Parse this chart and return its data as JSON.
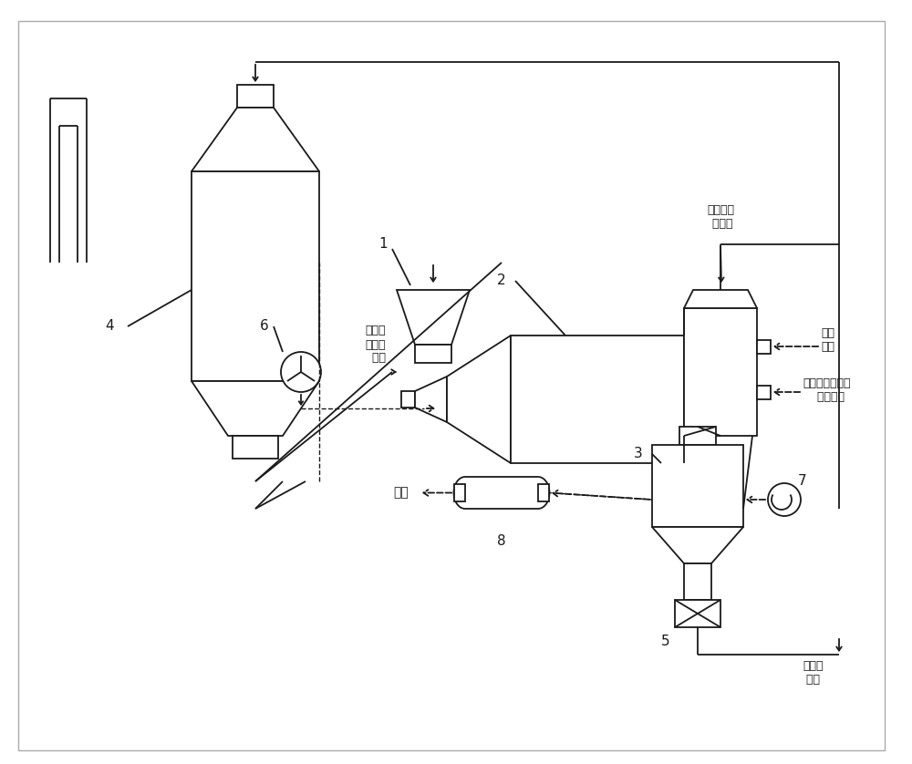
{
  "bg_color": "#ffffff",
  "line_color": "#1a1a1a",
  "labels": {
    "1": "1",
    "2": "2",
    "3": "3",
    "4": "4",
    "5": "5",
    "6": "6",
    "7": "7",
    "8": "8",
    "yanqi_label": "烟气或\n废气去\n  净化",
    "jiexi_label": "解吸气回\n 收利用",
    "jiare_label": "加热介质（烟气\n    或废气）",
    "xingqi_label": "惰性\n气体",
    "paifang_label": "排放",
    "xinxian_label": "新鲜活\n 性焦"
  }
}
